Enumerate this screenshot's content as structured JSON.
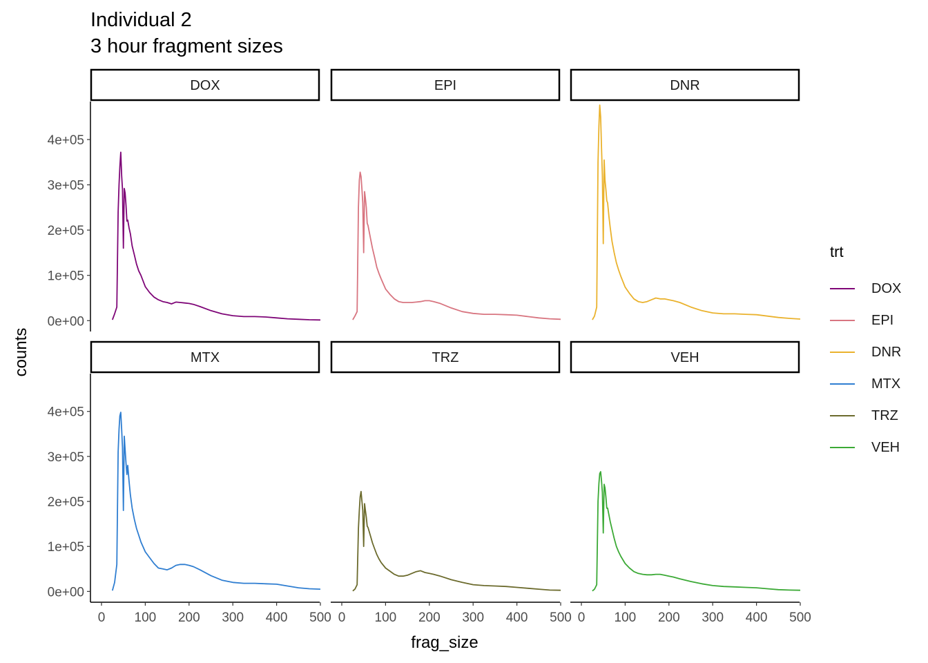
{
  "chart_data": {
    "type": "line",
    "title": "Individual 2",
    "subtitle": "3 hour fragment sizes",
    "xlabel": "frag_size",
    "ylabel": "counts",
    "xlim": [
      0,
      500
    ],
    "ylim": [
      0,
      480000
    ],
    "xticks": [
      0,
      100,
      200,
      300,
      400,
      500
    ],
    "yticks": [
      0,
      100000,
      200000,
      300000,
      400000
    ],
    "ytick_labels": [
      "0e+00",
      "1e+05",
      "2e+05",
      "3e+05",
      "4e+05"
    ],
    "legend": {
      "title": "trt",
      "position": "right"
    },
    "grid": false,
    "x": [
      25,
      30,
      35,
      38,
      40,
      42,
      44,
      46,
      48,
      50,
      52,
      54,
      56,
      58,
      60,
      63,
      66,
      70,
      75,
      80,
      85,
      90,
      100,
      110,
      120,
      130,
      140,
      150,
      160,
      170,
      180,
      190,
      200,
      210,
      225,
      250,
      275,
      300,
      325,
      350,
      375,
      400,
      425,
      450,
      475,
      500
    ],
    "series": [
      {
        "name": "DOX",
        "color": "#7E0577",
        "values": [
          2000,
          15000,
          30000,
          240000,
          300000,
          340000,
          372000,
          320000,
          290000,
          160000,
          292000,
          282000,
          255000,
          220000,
          222000,
          205000,
          192000,
          165000,
          145000,
          125000,
          110000,
          100000,
          75000,
          62000,
          52000,
          46000,
          42000,
          40000,
          37000,
          41000,
          40000,
          39000,
          38000,
          36000,
          31000,
          22000,
          15000,
          11000,
          9000,
          9000,
          8000,
          6000,
          4000,
          3000,
          2000,
          1500
        ]
      },
      {
        "name": "EPI",
        "color": "#D87580",
        "values": [
          2000,
          10000,
          20000,
          250000,
          310000,
          328000,
          318000,
          290000,
          260000,
          150000,
          285000,
          270000,
          250000,
          215000,
          210000,
          195000,
          180000,
          160000,
          140000,
          118000,
          104000,
          92000,
          70000,
          58000,
          48000,
          42000,
          40000,
          40000,
          40000,
          41000,
          42000,
          44000,
          44000,
          42000,
          38000,
          28000,
          20000,
          16000,
          14000,
          14000,
          13000,
          12000,
          9000,
          6000,
          4000,
          3000
        ]
      },
      {
        "name": "DNR",
        "color": "#EAB22D",
        "values": [
          2000,
          10000,
          30000,
          350000,
          430000,
          476000,
          450000,
          380000,
          320000,
          170000,
          355000,
          310000,
          290000,
          265000,
          260000,
          230000,
          205000,
          175000,
          150000,
          128000,
          112000,
          98000,
          74000,
          60000,
          48000,
          42000,
          40000,
          42000,
          46000,
          50000,
          48000,
          48000,
          46000,
          44000,
          40000,
          30000,
          22000,
          17000,
          15000,
          15000,
          14000,
          13000,
          10000,
          7000,
          5000,
          3500
        ]
      },
      {
        "name": "MTX",
        "color": "#2F7ED1",
        "values": [
          2000,
          20000,
          60000,
          310000,
          360000,
          390000,
          398000,
          360000,
          320000,
          180000,
          345000,
          315000,
          285000,
          260000,
          280000,
          245000,
          215000,
          185000,
          160000,
          140000,
          125000,
          110000,
          88000,
          75000,
          62000,
          52000,
          50000,
          48000,
          52000,
          58000,
          60000,
          60000,
          58000,
          55000,
          48000,
          35000,
          25000,
          20000,
          18000,
          18000,
          17000,
          16000,
          12000,
          8000,
          6000,
          5000
        ]
      },
      {
        "name": "TRZ",
        "color": "#6B6A2C",
        "values": [
          1000,
          5000,
          15000,
          140000,
          180000,
          210000,
          222000,
          200000,
          180000,
          100000,
          195000,
          180000,
          165000,
          145000,
          142000,
          132000,
          122000,
          108000,
          95000,
          82000,
          72000,
          64000,
          52000,
          45000,
          38000,
          34000,
          34000,
          36000,
          40000,
          44000,
          46000,
          42000,
          40000,
          38000,
          34000,
          26000,
          20000,
          15000,
          13000,
          12000,
          11000,
          9000,
          7000,
          5000,
          3000,
          2500
        ]
      },
      {
        "name": "VEH",
        "color": "#3BA935",
        "values": [
          1000,
          5000,
          15000,
          200000,
          240000,
          262000,
          266000,
          245000,
          220000,
          130000,
          238000,
          230000,
          210000,
          185000,
          185000,
          170000,
          155000,
          138000,
          118000,
          100000,
          88000,
          78000,
          62000,
          52000,
          44000,
          40000,
          38000,
          37000,
          37000,
          38000,
          38000,
          36000,
          34000,
          32000,
          28000,
          22000,
          17000,
          13000,
          11000,
          10000,
          9000,
          8000,
          6000,
          4000,
          3000,
          2500
        ]
      }
    ]
  },
  "panels": [
    {
      "label": "DOX"
    },
    {
      "label": "EPI"
    },
    {
      "label": "DNR"
    },
    {
      "label": "MTX"
    },
    {
      "label": "TRZ"
    },
    {
      "label": "VEH"
    }
  ]
}
